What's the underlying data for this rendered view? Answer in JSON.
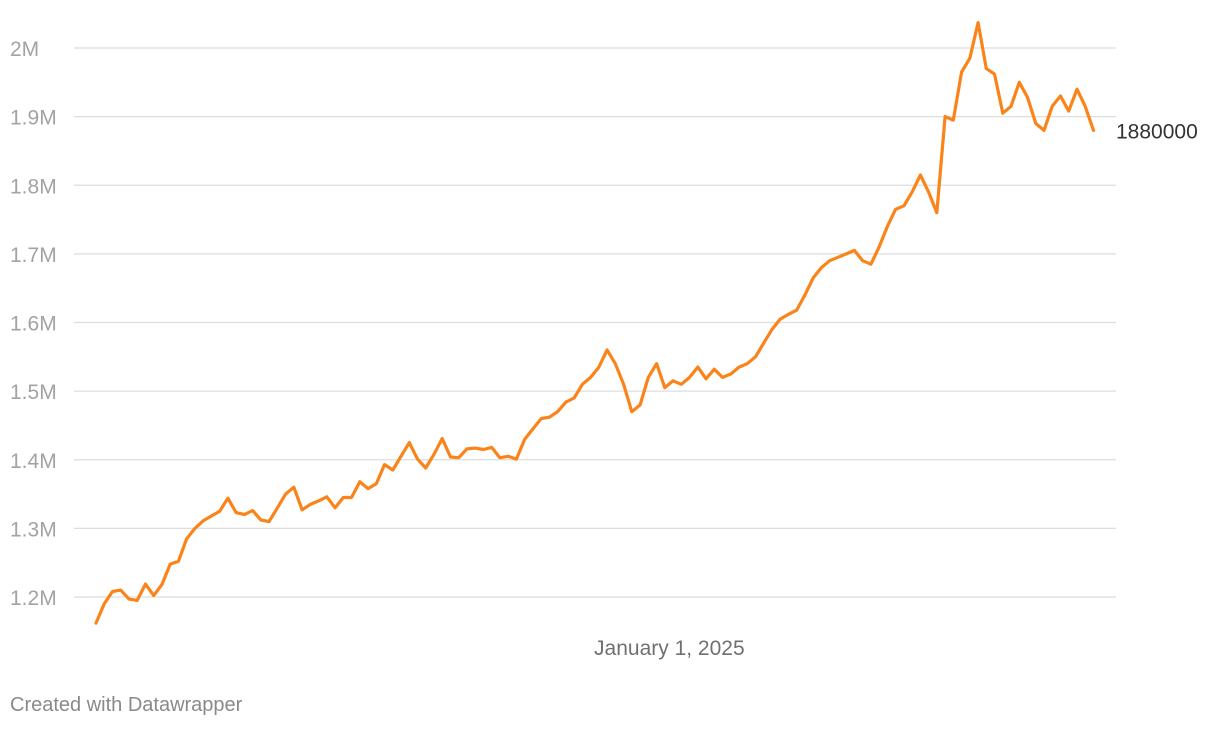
{
  "chart_data": {
    "type": "line",
    "title": "",
    "xlabel": "",
    "ylabel": "",
    "grid": true,
    "ylim": [
      1150000,
      2050000
    ],
    "y_ticks": [
      1200000,
      1300000,
      1400000,
      1500000,
      1600000,
      1700000,
      1800000,
      1900000,
      2000000
    ],
    "y_tick_labels": [
      "1.2M",
      "1.3M",
      "1.4M",
      "1.5M",
      "1.6M",
      "1.7M",
      "1.8M",
      "1.9M",
      "2M"
    ],
    "x_range": [
      "2023-09-03",
      "2025-12-31"
    ],
    "x_ticks": [
      {
        "date": "2025-01-01",
        "label": "January 1, 2025"
      }
    ],
    "color": "#fa8419",
    "end_label": "1880000",
    "series": [
      {
        "points": [
          [
            "2023-09-03",
            1162000
          ],
          [
            "2023-09-10",
            1190000
          ],
          [
            "2023-09-17",
            1208000
          ],
          [
            "2023-09-24",
            1210000
          ],
          [
            "2023-10-01",
            1197000
          ],
          [
            "2023-10-08",
            1195000
          ],
          [
            "2023-10-15",
            1219000
          ],
          [
            "2023-10-22",
            1202000
          ],
          [
            "2023-10-29",
            1218000
          ],
          [
            "2023-11-05",
            1248000
          ],
          [
            "2023-11-12",
            1252000
          ],
          [
            "2023-11-19",
            1285000
          ],
          [
            "2023-11-26",
            1300000
          ],
          [
            "2023-12-03",
            1311000
          ],
          [
            "2023-12-10",
            1318000
          ],
          [
            "2023-12-17",
            1325000
          ],
          [
            "2023-12-24",
            1344000
          ],
          [
            "2023-12-31",
            1323000
          ],
          [
            "2024-01-07",
            1320000
          ],
          [
            "2024-01-14",
            1326000
          ],
          [
            "2024-01-21",
            1312000
          ],
          [
            "2024-01-28",
            1310000
          ],
          [
            "2024-02-04",
            1330000
          ],
          [
            "2024-02-11",
            1350000
          ],
          [
            "2024-02-18",
            1360000
          ],
          [
            "2024-02-25",
            1327000
          ],
          [
            "2024-03-03",
            1335000
          ],
          [
            "2024-03-10",
            1340000
          ],
          [
            "2024-03-17",
            1346000
          ],
          [
            "2024-03-24",
            1330000
          ],
          [
            "2024-03-31",
            1345000
          ],
          [
            "2024-04-07",
            1345000
          ],
          [
            "2024-04-14",
            1368000
          ],
          [
            "2024-04-21",
            1358000
          ],
          [
            "2024-04-28",
            1365000
          ],
          [
            "2024-05-05",
            1393000
          ],
          [
            "2024-05-12",
            1385000
          ],
          [
            "2024-05-19",
            1405000
          ],
          [
            "2024-05-26",
            1425000
          ],
          [
            "2024-06-02",
            1401000
          ],
          [
            "2024-06-09",
            1388000
          ],
          [
            "2024-06-16",
            1408000
          ],
          [
            "2024-06-23",
            1431000
          ],
          [
            "2024-06-30",
            1404000
          ],
          [
            "2024-07-07",
            1403000
          ],
          [
            "2024-07-14",
            1416000
          ],
          [
            "2024-07-21",
            1417000
          ],
          [
            "2024-07-28",
            1415000
          ],
          [
            "2024-08-04",
            1418000
          ],
          [
            "2024-08-11",
            1403000
          ],
          [
            "2024-08-18",
            1405000
          ],
          [
            "2024-08-25",
            1401000
          ],
          [
            "2024-09-01",
            1430000
          ],
          [
            "2024-09-08",
            1445000
          ],
          [
            "2024-09-15",
            1460000
          ],
          [
            "2024-09-22",
            1462000
          ],
          [
            "2024-09-29",
            1470000
          ],
          [
            "2024-10-06",
            1484000
          ],
          [
            "2024-10-13",
            1490000
          ],
          [
            "2024-10-20",
            1510000
          ],
          [
            "2024-10-27",
            1520000
          ],
          [
            "2024-11-03",
            1535000
          ],
          [
            "2024-11-10",
            1560000
          ],
          [
            "2024-11-17",
            1540000
          ],
          [
            "2024-11-24",
            1510000
          ],
          [
            "2024-12-01",
            1470000
          ],
          [
            "2024-12-08",
            1480000
          ],
          [
            "2024-12-15",
            1520000
          ],
          [
            "2024-12-22",
            1540000
          ],
          [
            "2024-12-29",
            1505000
          ],
          [
            "2025-01-05",
            1515000
          ],
          [
            "2025-01-12",
            1510000
          ],
          [
            "2025-01-19",
            1520000
          ],
          [
            "2025-01-26",
            1535000
          ],
          [
            "2025-02-02",
            1518000
          ],
          [
            "2025-02-09",
            1532000
          ],
          [
            "2025-02-16",
            1520000
          ],
          [
            "2025-02-23",
            1525000
          ],
          [
            "2025-03-02",
            1535000
          ],
          [
            "2025-03-09",
            1540000
          ],
          [
            "2025-03-16",
            1550000
          ],
          [
            "2025-03-23",
            1570000
          ],
          [
            "2025-03-30",
            1590000
          ],
          [
            "2025-04-06",
            1605000
          ],
          [
            "2025-04-13",
            1612000
          ],
          [
            "2025-04-20",
            1618000
          ],
          [
            "2025-04-27",
            1640000
          ],
          [
            "2025-05-04",
            1665000
          ],
          [
            "2025-05-11",
            1680000
          ],
          [
            "2025-05-18",
            1690000
          ],
          [
            "2025-05-25",
            1695000
          ],
          [
            "2025-06-01",
            1700000
          ],
          [
            "2025-06-08",
            1705000
          ],
          [
            "2025-06-15",
            1690000
          ],
          [
            "2025-06-22",
            1685000
          ],
          [
            "2025-06-29",
            1710000
          ],
          [
            "2025-07-06",
            1740000
          ],
          [
            "2025-07-13",
            1765000
          ],
          [
            "2025-07-20",
            1770000
          ],
          [
            "2025-07-27",
            1790000
          ],
          [
            "2025-08-03",
            1815000
          ],
          [
            "2025-08-10",
            1790000
          ],
          [
            "2025-08-17",
            1760000
          ],
          [
            "2025-08-24",
            1900000
          ],
          [
            "2025-08-31",
            1895000
          ],
          [
            "2025-09-07",
            1965000
          ],
          [
            "2025-09-14",
            1985000
          ],
          [
            "2025-09-21",
            2037000
          ],
          [
            "2025-09-28",
            1970000
          ],
          [
            "2025-10-05",
            1962000
          ],
          [
            "2025-10-12",
            1905000
          ],
          [
            "2025-10-19",
            1915000
          ],
          [
            "2025-10-26",
            1950000
          ],
          [
            "2025-11-02",
            1928000
          ],
          [
            "2025-11-09",
            1890000
          ],
          [
            "2025-11-16",
            1880000
          ],
          [
            "2025-11-23",
            1915000
          ],
          [
            "2025-11-30",
            1930000
          ],
          [
            "2025-12-07",
            1908000
          ],
          [
            "2025-12-14",
            1940000
          ],
          [
            "2025-12-21",
            1915000
          ],
          [
            "2025-12-28",
            1880000
          ]
        ]
      }
    ]
  },
  "footer": {
    "credit": "Created with Datawrapper"
  }
}
